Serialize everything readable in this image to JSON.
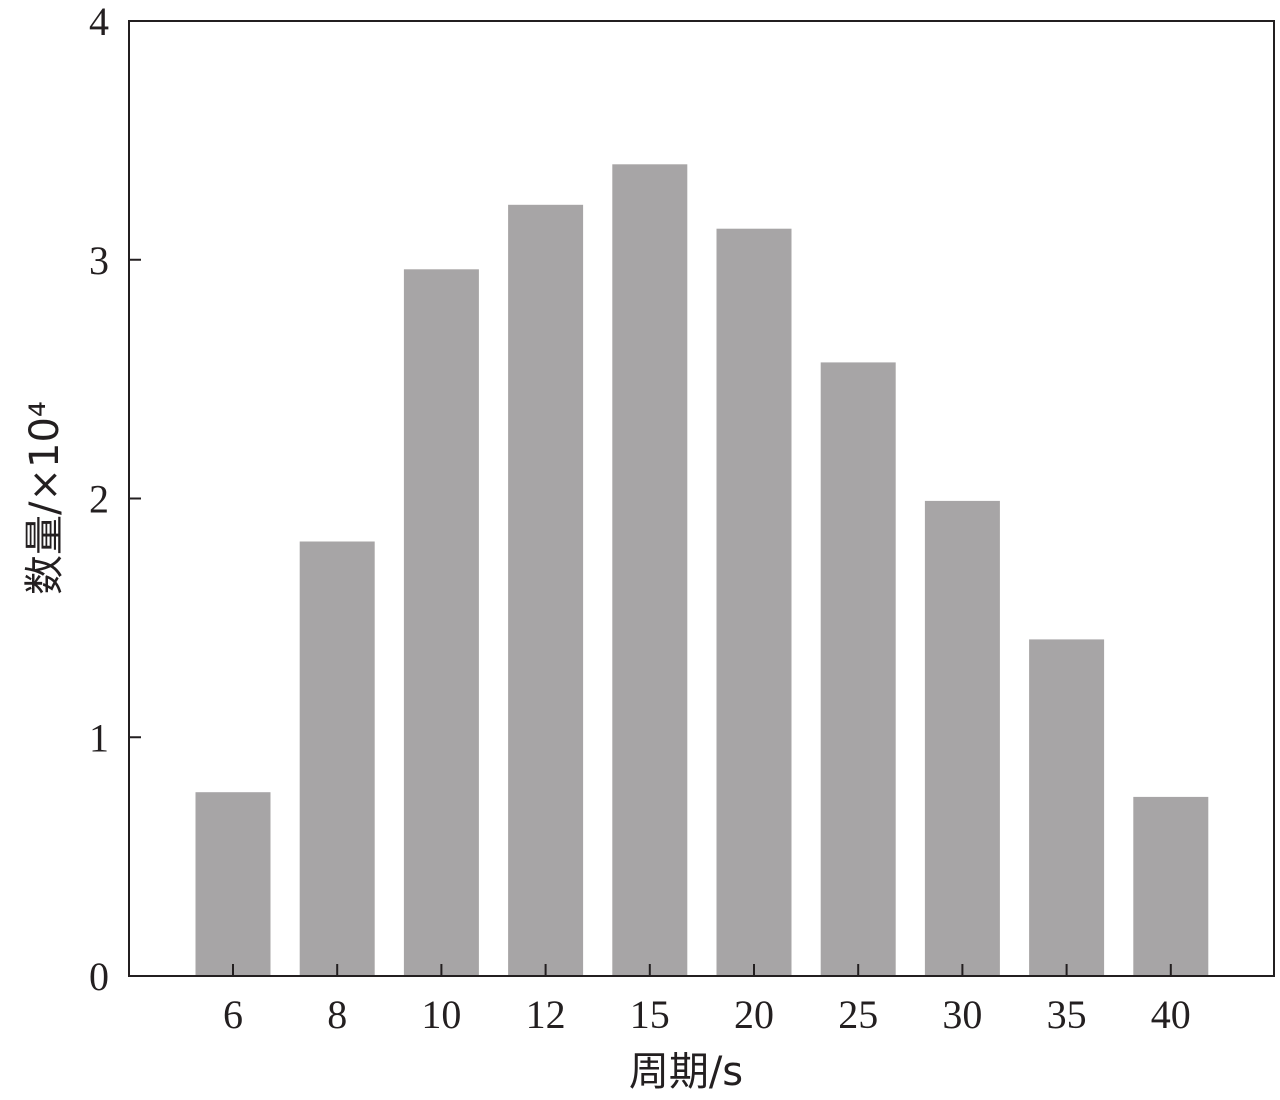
{
  "chart_data": {
    "type": "bar",
    "categories": [
      "6",
      "8",
      "10",
      "12",
      "15",
      "20",
      "25",
      "30",
      "35",
      "40"
    ],
    "values": [
      0.77,
      1.82,
      2.96,
      3.23,
      3.4,
      3.13,
      2.57,
      1.99,
      1.41,
      0.75
    ],
    "xlabel": "周期/s",
    "ylabel": "数量/×10⁴",
    "ylim": [
      0,
      4
    ],
    "yticks": [
      "0",
      "1",
      "2",
      "3",
      "4"
    ],
    "grid": false,
    "legend": "none",
    "colors": {
      "bar": "#a7a5a6",
      "axis": "#231f20"
    }
  }
}
